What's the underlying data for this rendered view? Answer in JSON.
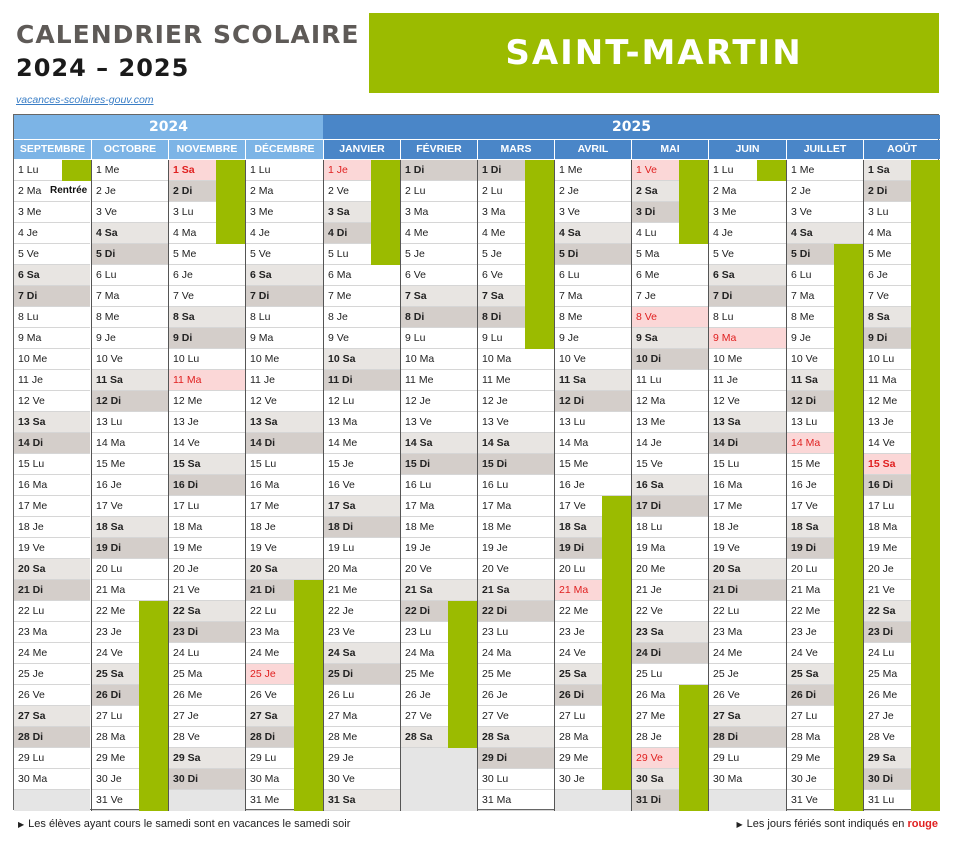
{
  "header": {
    "title": "CALENDRIER SCOLAIRE",
    "years": "2024 – 2025",
    "source": "vacances-scolaires-gouv.com",
    "region": "SAINT-MARTIN"
  },
  "calendar": {
    "year_labels": [
      "2024",
      "2025"
    ],
    "months": [
      {
        "name": "SEPTEMBRE",
        "year": "2024",
        "days": 30,
        "start": 0,
        "notes": {
          "2": "Rentrée"
        },
        "holidays": [],
        "vacations": [
          [
            1,
            1
          ]
        ]
      },
      {
        "name": "OCTOBRE",
        "year": "2024",
        "days": 31,
        "start": 2,
        "notes": {},
        "holidays": [],
        "vacations": [
          [
            22,
            31
          ]
        ]
      },
      {
        "name": "NOVEMBRE",
        "year": "2024",
        "days": 30,
        "start": 5,
        "notes": {},
        "holidays": [
          1,
          11
        ],
        "vacations": [
          [
            1,
            4
          ]
        ]
      },
      {
        "name": "DÉCEMBRE",
        "year": "2024",
        "days": 31,
        "start": 0,
        "notes": {},
        "holidays": [
          25
        ],
        "vacations": [
          [
            21,
            31
          ]
        ]
      },
      {
        "name": "JANVIER",
        "year": "2025",
        "days": 31,
        "start": 3,
        "notes": {},
        "holidays": [
          1
        ],
        "vacations": [
          [
            1,
            5
          ]
        ]
      },
      {
        "name": "FÉVRIER",
        "year": "2025",
        "days": 28,
        "start": 6,
        "notes": {},
        "holidays": [],
        "vacations": [
          [
            22,
            28
          ]
        ]
      },
      {
        "name": "MARS",
        "year": "2025",
        "days": 31,
        "start": 6,
        "notes": {},
        "holidays": [],
        "vacations": [
          [
            1,
            9
          ]
        ]
      },
      {
        "name": "AVRIL",
        "year": "2025",
        "days": 30,
        "start": 2,
        "notes": {},
        "holidays": [
          21
        ],
        "vacations": [
          [
            17,
            30
          ]
        ]
      },
      {
        "name": "MAI",
        "year": "2025",
        "days": 31,
        "start": 4,
        "notes": {},
        "holidays": [
          1,
          8,
          29
        ],
        "vacations": [
          [
            1,
            4
          ],
          [
            26,
            31
          ]
        ]
      },
      {
        "name": "JUIN",
        "year": "2025",
        "days": 30,
        "start": 0,
        "notes": {},
        "holidays": [
          9
        ],
        "vacations": [
          [
            1,
            1
          ]
        ]
      },
      {
        "name": "JUILLET",
        "year": "2025",
        "days": 31,
        "start": 2,
        "notes": {},
        "holidays": [
          14
        ],
        "vacations": [
          [
            5,
            31
          ]
        ]
      },
      {
        "name": "AOÛT",
        "year": "2025",
        "days": 31,
        "start": 5,
        "notes": {},
        "holidays": [
          15
        ],
        "vacations": [
          [
            1,
            31
          ]
        ]
      }
    ],
    "weekday_abbr": [
      "Lu",
      "Ma",
      "Me",
      "Je",
      "Ve",
      "Sa",
      "Di"
    ],
    "colors": {
      "vacation": "#9bbb00",
      "holiday_text": "#e02020",
      "year_2024": "#7cb4e6",
      "year_2025": "#4a86c8"
    }
  },
  "footer": {
    "left": "Les élèves ayant cours le samedi sont en vacances le samedi soir",
    "right_prefix": "Les jours fériés sont indiqués en",
    "right_highlight": "rouge"
  }
}
